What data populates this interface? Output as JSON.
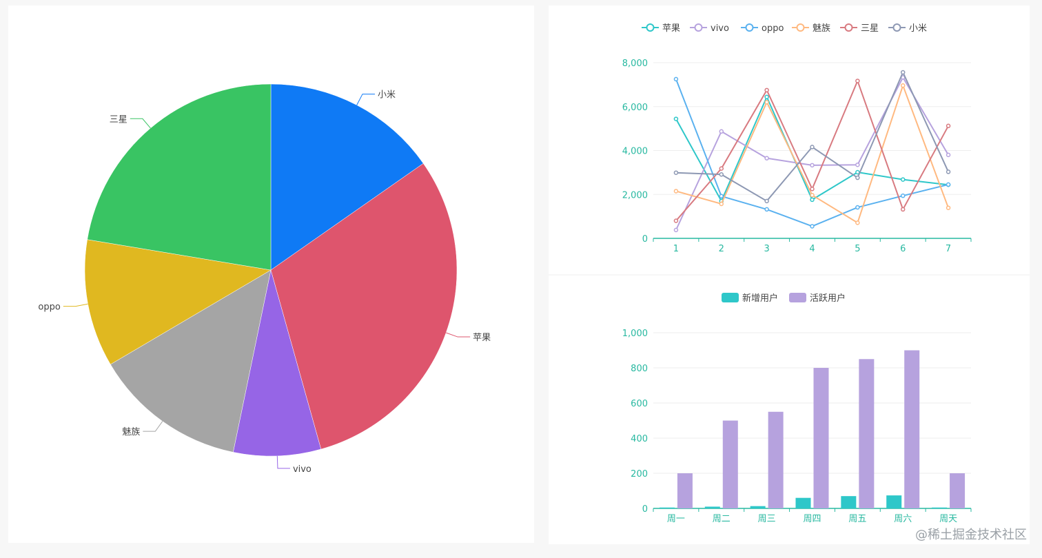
{
  "watermark": "@稀土掘金技术社区",
  "chart_data": [
    {
      "type": "pie",
      "slices": [
        {
          "name": "小米",
          "value": 15.3,
          "color": "#0f7af5"
        },
        {
          "name": "苹果",
          "value": 30.4,
          "color": "#de556d"
        },
        {
          "name": "vivo",
          "value": 7.6,
          "color": "#9665e6"
        },
        {
          "name": "魅族",
          "value": 13.3,
          "color": "#a5a5a5"
        },
        {
          "name": "oppo",
          "value": 11.1,
          "color": "#e0b820"
        },
        {
          "name": "三星",
          "value": 22.4,
          "color": "#39c463"
        }
      ]
    },
    {
      "type": "line",
      "categories": [
        "1",
        "2",
        "3",
        "4",
        "5",
        "6",
        "7"
      ],
      "ylim": [
        0,
        8000
      ],
      "yticks": [
        "0",
        "2,000",
        "4,000",
        "6,000",
        "8,000"
      ],
      "legend": "top-center",
      "grid": true,
      "series": [
        {
          "name": "苹果",
          "color": "#2ec7c9",
          "values": [
            5440,
            1700,
            6440,
            1760,
            3010,
            2680,
            2440
          ]
        },
        {
          "name": "vivo",
          "color": "#b6a2de",
          "values": [
            380,
            4870,
            3650,
            3330,
            3350,
            7330,
            3800
          ]
        },
        {
          "name": "oppo",
          "color": "#5ab1ef",
          "values": [
            7250,
            1920,
            1320,
            550,
            1410,
            1940,
            2450
          ]
        },
        {
          "name": "魅族",
          "color": "#ffb980",
          "values": [
            2150,
            1570,
            6200,
            1970,
            710,
            6960,
            1390
          ]
        },
        {
          "name": "三星",
          "color": "#d87a80",
          "values": [
            800,
            3180,
            6750,
            2250,
            7170,
            1320,
            5120
          ]
        },
        {
          "name": "小米",
          "color": "#8d98b3",
          "values": [
            2990,
            2910,
            1700,
            4160,
            2760,
            7560,
            3030
          ]
        }
      ]
    },
    {
      "type": "bar",
      "categories": [
        "周一",
        "周二",
        "周三",
        "周四",
        "周五",
        "周六",
        "周天"
      ],
      "ylim": [
        0,
        1000
      ],
      "yticks": [
        "0",
        "200",
        "400",
        "600",
        "800",
        "1,000"
      ],
      "legend": "top-center",
      "grid": true,
      "series": [
        {
          "name": "新增用户",
          "color": "#2ec7c9",
          "values": [
            5,
            10,
            13,
            60,
            70,
            74,
            5
          ]
        },
        {
          "name": "活跃用户",
          "color": "#b6a2de",
          "values": [
            200,
            500,
            550,
            800,
            850,
            900,
            200
          ]
        }
      ]
    }
  ]
}
